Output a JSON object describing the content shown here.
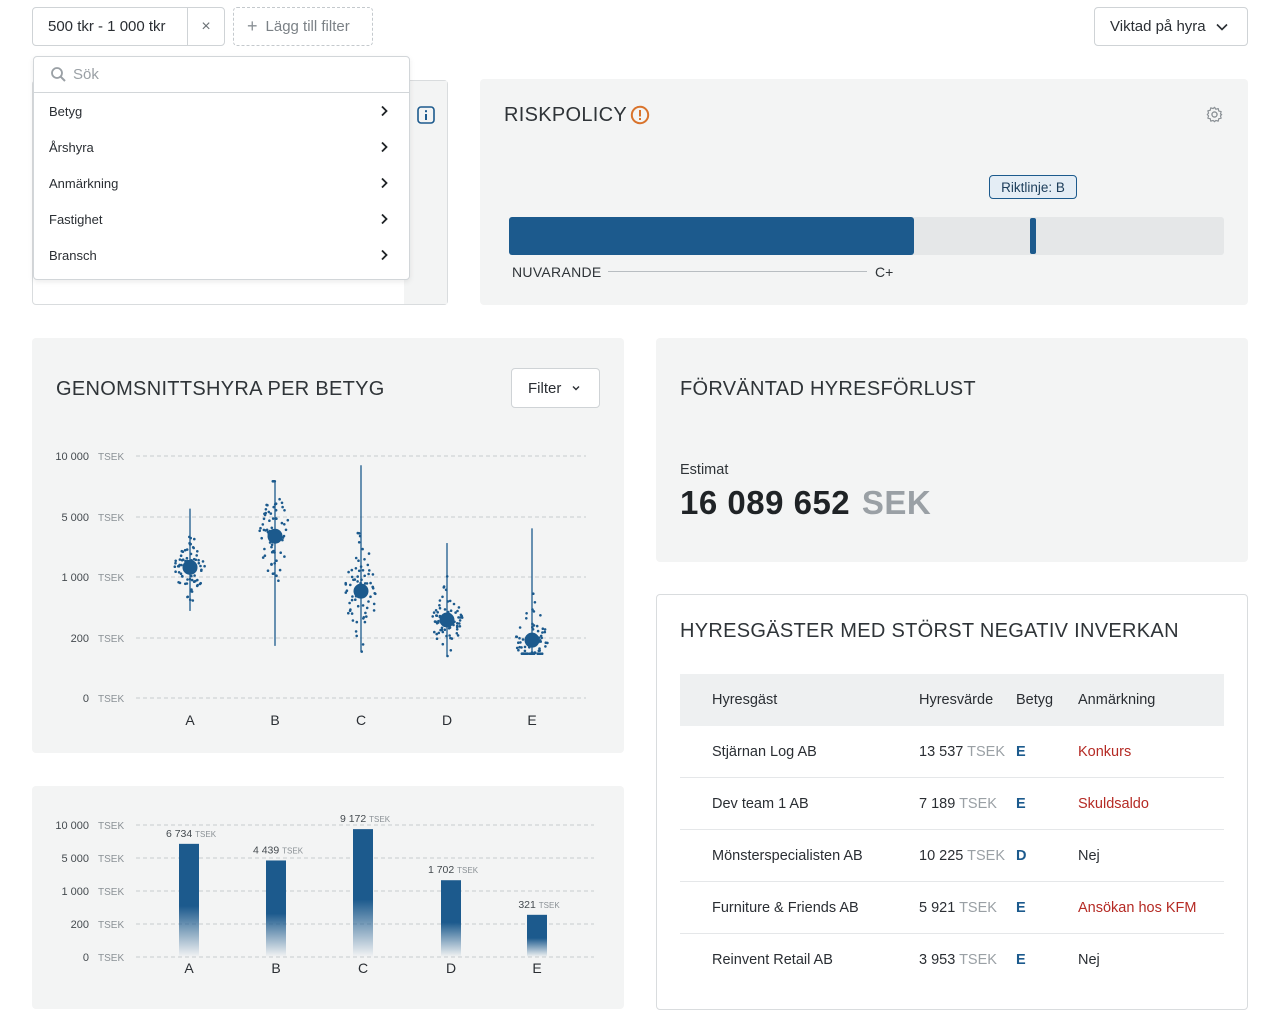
{
  "top_bar": {
    "active_filter": "500 tkr - 1 000 tkr",
    "clear_symbol": "×",
    "add_filter": "Lägg till filter",
    "weighting": "Viktad på hyra"
  },
  "dropdown": {
    "search_placeholder": "Sök",
    "items": [
      "Betyg",
      "Årshyra",
      "Anmärkning",
      "Fastighet",
      "Bransch"
    ]
  },
  "riskpolicy": {
    "title": "RISKPOLICY",
    "guideline_label": "Riktlinje: B",
    "current_label": "NUVARANDE",
    "current_grade": "C+",
    "current_fraction": 0.567,
    "guideline_fraction": 0.733
  },
  "scatter_card": {
    "title": "GENOMSNITTSHYRA PER BETYG",
    "filter_label": "Filter"
  },
  "loss_card": {
    "title": "FÖRVÄNTAD HYRESFÖRLUST",
    "estimate_label": "Estimat",
    "value": "16 089 652",
    "currency": "SEK"
  },
  "tenants_card": {
    "title": "HYRESGÄSTER MED STÖRST NEGATIV INVERKAN",
    "columns": [
      "Hyresgäst",
      "Hyresvärde",
      "Betyg",
      "Anmärkning"
    ],
    "unit": "TSEK",
    "rows": [
      {
        "name": "Stjärnan Log AB",
        "value": "13 537",
        "grade": "E",
        "remark": "Konkurs",
        "remark_alert": true
      },
      {
        "name": "Dev team 1 AB",
        "value": "7 189",
        "grade": "E",
        "remark": "Skuldsaldo",
        "remark_alert": true
      },
      {
        "name": "Mönsterspecialisten AB",
        "value": "10 225",
        "grade": "D",
        "remark": "Nej",
        "remark_alert": false
      },
      {
        "name": "Furniture & Friends AB",
        "value": "5 921",
        "grade": "E",
        "remark": "Ansökan hos KFM",
        "remark_alert": true
      },
      {
        "name": "Reinvent Retail AB",
        "value": "3 953",
        "grade": "E",
        "remark": "Nej",
        "remark_alert": false
      }
    ]
  },
  "colors": {
    "accent": "#1c5a8d",
    "alert": "#b52a24",
    "warning": "#d9732b",
    "card_bg": "#f3f4f4"
  },
  "chart_data": [
    {
      "type": "scatter",
      "title": "GENOMSNITTSHYRA PER BETYG",
      "categories": [
        "A",
        "B",
        "C",
        "D",
        "E"
      ],
      "y_ticks": [
        "10 000",
        "5 000",
        "1 000",
        "200",
        "0"
      ],
      "y_unit": "TSEK",
      "means": [
        1300,
        3000,
        700,
        330,
        185
      ],
      "whisker_low": [
        420,
        150,
        120,
        100,
        110
      ],
      "whisker_high": [
        5500,
        7500,
        9000,
        2500,
        3700
      ]
    },
    {
      "type": "bar",
      "categories": [
        "A",
        "B",
        "C",
        "D",
        "E"
      ],
      "values": [
        6734,
        4439,
        9172,
        1702,
        321
      ],
      "value_labels": [
        "6 734",
        "4 439",
        "9 172",
        "1 702",
        "321"
      ],
      "y_ticks": [
        "10 000",
        "5 000",
        "1 000",
        "200",
        "0"
      ],
      "y_unit": "TSEK"
    }
  ]
}
